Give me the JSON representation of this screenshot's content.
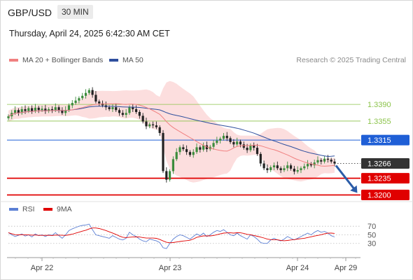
{
  "header": {
    "symbol": "GBP/USD",
    "timeframe": "30 MIN",
    "datetime": "Thursday, April 24, 2025 6:42:30 AM CET",
    "copyright": "Research © 2025 Trading Central"
  },
  "legend": {
    "ma20": {
      "label": "MA 20 + Bollinger Bands",
      "color": "#f08080"
    },
    "ma50": {
      "label": "MA 50",
      "color": "#2f4f9e"
    },
    "rsi": {
      "label": "RSI",
      "color": "#5b7fd4"
    },
    "ma9": {
      "label": "9MA",
      "color": "#e00000"
    }
  },
  "chart_data": [
    {
      "type": "line",
      "subtype": "candlestick",
      "x_ticks": [
        "Apr 22",
        "Apr 23",
        "Apr 24",
        "Apr 29"
      ],
      "levels": [
        {
          "value": 1.339,
          "label": "1.3390",
          "style": "resistance",
          "color": "#8bc34a"
        },
        {
          "value": 1.3355,
          "label": "1.3355",
          "style": "resistance",
          "color": "#8bc34a"
        },
        {
          "value": 1.3315,
          "label": "1.3315",
          "style": "pivot",
          "color": "#1f5fd6"
        },
        {
          "value": 1.3266,
          "label": "1.3266",
          "style": "last-price",
          "color": "#333333"
        },
        {
          "value": 1.3235,
          "label": "1.3235",
          "style": "support",
          "color": "#e00000"
        },
        {
          "value": 1.32,
          "label": "1.3200",
          "style": "support",
          "color": "#e00000"
        }
      ],
      "forecast_target": 1.32,
      "close_path": [
        1.3365,
        1.3372,
        1.3378,
        1.3372,
        1.338,
        1.3376,
        1.3382,
        1.3376,
        1.3383,
        1.3378,
        1.3381,
        1.3376,
        1.338,
        1.3378,
        1.3384,
        1.3378,
        1.3372,
        1.3378,
        1.3388,
        1.3393,
        1.3398,
        1.3403,
        1.3408,
        1.3414,
        1.342,
        1.341,
        1.3396,
        1.3392,
        1.3388,
        1.3384,
        1.338,
        1.3384,
        1.3378,
        1.3372,
        1.3368,
        1.3372,
        1.3384,
        1.338,
        1.3374,
        1.3366,
        1.3354,
        1.3344,
        1.3348,
        1.3346,
        1.3342,
        1.333,
        1.325,
        1.3232,
        1.325,
        1.3275,
        1.329,
        1.33,
        1.3296,
        1.329,
        1.3284,
        1.329,
        1.33,
        1.3295,
        1.3304,
        1.3296,
        1.3301,
        1.3309,
        1.3314,
        1.3318,
        1.3324,
        1.3319,
        1.3311,
        1.3306,
        1.3312,
        1.3306,
        1.3299,
        1.3294,
        1.3304,
        1.3299,
        1.3286,
        1.3266,
        1.3256,
        1.3252,
        1.3258,
        1.3262,
        1.3256,
        1.3252,
        1.3256,
        1.3262,
        1.3255,
        1.3249,
        1.3252,
        1.3256,
        1.326,
        1.3265,
        1.3262,
        1.3268,
        1.3273,
        1.327,
        1.3276,
        1.3274,
        1.327,
        1.3266
      ],
      "ylim": [
        1.3186,
        1.3468
      ]
    },
    {
      "type": "line",
      "name": "RSI",
      "y_ticks": [
        70,
        50,
        30
      ],
      "ylim": [
        10,
        85
      ],
      "rsi_path": [
        55,
        50,
        46,
        49,
        52,
        47,
        50,
        45,
        52,
        48,
        50,
        46,
        50,
        49,
        55,
        48,
        42,
        50,
        60,
        64,
        67,
        70,
        72,
        73,
        75,
        62,
        50,
        48,
        46,
        44,
        42,
        48,
        44,
        40,
        38,
        42,
        56,
        50,
        46,
        40,
        36,
        34,
        40,
        38,
        36,
        32,
        20,
        18,
        30,
        40,
        46,
        50,
        48,
        44,
        40,
        46,
        52,
        48,
        54,
        46,
        50,
        56,
        60,
        58,
        62,
        56,
        50,
        48,
        54,
        48,
        44,
        40,
        50,
        46,
        40,
        32,
        30,
        30,
        38,
        42,
        38,
        36,
        40,
        46,
        42,
        38,
        42,
        46,
        50,
        54,
        50,
        56,
        60,
        56,
        58,
        54,
        48,
        45
      ]
    }
  ]
}
